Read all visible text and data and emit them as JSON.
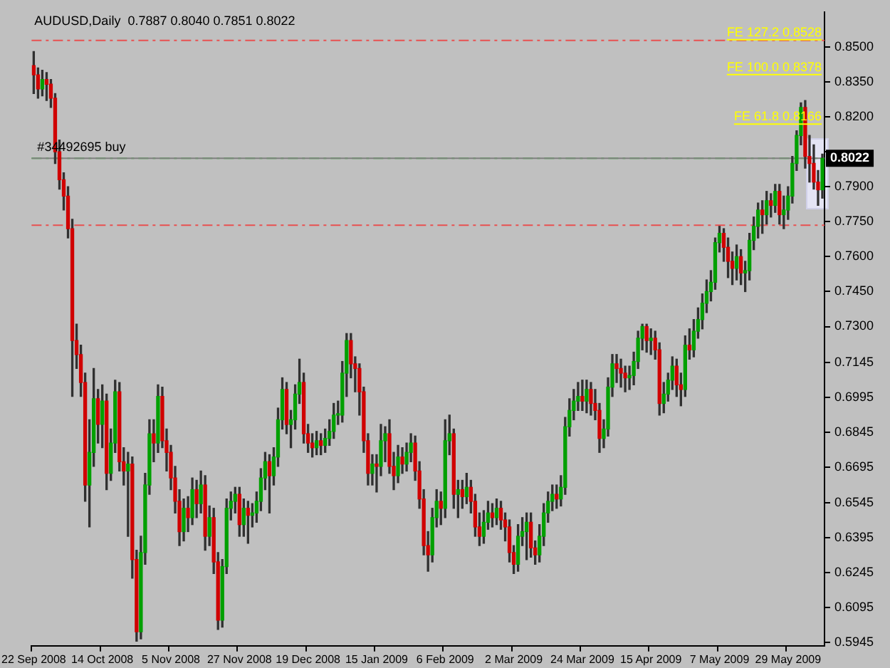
{
  "chart_data": {
    "type": "candlestick",
    "title": "AUDUSD,Daily  0.7887 0.8040 0.7851 0.8022",
    "categories": [
      "22 Sep 2008",
      null,
      null,
      null,
      null,
      null,
      null,
      null,
      null,
      null,
      null,
      null,
      null,
      null,
      null,
      null,
      "14 Oct 2008",
      null,
      null,
      null,
      null,
      null,
      null,
      null,
      null,
      null,
      null,
      null,
      null,
      null,
      null,
      null,
      "5 Nov 2008",
      null,
      null,
      null,
      null,
      null,
      null,
      null,
      null,
      null,
      null,
      null,
      null,
      null,
      null,
      null,
      "27 Nov 2008",
      null,
      null,
      null,
      null,
      null,
      null,
      null,
      null,
      null,
      null,
      null,
      null,
      null,
      null,
      null,
      "19 Dec 2008",
      null,
      null,
      null,
      null,
      null,
      null,
      null,
      null,
      null,
      null,
      null,
      null,
      null,
      null,
      null,
      "15 Jan 2009",
      null,
      null,
      null,
      null,
      null,
      null,
      null,
      null,
      null,
      null,
      null,
      null,
      null,
      null,
      null,
      "6 Feb 2009",
      null,
      null,
      null,
      null,
      null,
      null,
      null,
      null,
      null,
      null,
      null,
      null,
      null,
      null,
      null,
      "2 Mar 2009",
      null,
      null,
      null,
      null,
      null,
      null,
      null,
      null,
      null,
      null,
      null,
      null,
      null,
      null,
      null,
      "24 Mar 2009",
      null,
      null,
      null,
      null,
      null,
      null,
      null,
      null,
      null,
      null,
      null,
      null,
      null,
      null,
      null,
      "15 Apr 2009",
      null,
      null,
      null,
      null,
      null,
      null,
      null,
      null,
      null,
      null,
      null,
      null,
      null,
      null,
      null,
      "7 May 2009",
      null,
      null,
      null,
      null,
      null,
      null,
      null,
      null,
      null,
      null,
      null,
      null,
      null,
      null,
      null,
      "29 May 2009",
      null,
      null,
      null,
      null,
      null,
      null,
      null,
      null
    ],
    "ohlc": [
      [
        0.842,
        0.848,
        0.83,
        0.838
      ],
      [
        0.838,
        0.841,
        0.828,
        0.832
      ],
      [
        0.832,
        0.84,
        0.829,
        0.836
      ],
      [
        0.836,
        0.839,
        0.827,
        0.834
      ],
      [
        0.834,
        0.836,
        0.824,
        0.828
      ],
      [
        0.828,
        0.83,
        0.8,
        0.805
      ],
      [
        0.805,
        0.81,
        0.789,
        0.793
      ],
      [
        0.793,
        0.796,
        0.78,
        0.786
      ],
      [
        0.786,
        0.79,
        0.768,
        0.772
      ],
      [
        0.772,
        0.776,
        0.7,
        0.724
      ],
      [
        0.724,
        0.731,
        0.712,
        0.718
      ],
      [
        0.718,
        0.722,
        0.7,
        0.706
      ],
      [
        0.706,
        0.71,
        0.655,
        0.662
      ],
      [
        0.662,
        0.69,
        0.644,
        0.676
      ],
      [
        0.676,
        0.712,
        0.67,
        0.699
      ],
      [
        0.699,
        0.703,
        0.68,
        0.688
      ],
      [
        0.688,
        0.705,
        0.678,
        0.698
      ],
      [
        0.698,
        0.701,
        0.66,
        0.667
      ],
      [
        0.667,
        0.686,
        0.664,
        0.68
      ],
      [
        0.68,
        0.707,
        0.676,
        0.702
      ],
      [
        0.702,
        0.706,
        0.668,
        0.672
      ],
      [
        0.672,
        0.678,
        0.662,
        0.668
      ],
      [
        0.668,
        0.676,
        0.64,
        0.671
      ],
      [
        0.671,
        0.674,
        0.622,
        0.63
      ],
      [
        0.63,
        0.634,
        0.595,
        0.599
      ],
      [
        0.599,
        0.64,
        0.596,
        0.633
      ],
      [
        0.633,
        0.667,
        0.628,
        0.662
      ],
      [
        0.662,
        0.69,
        0.658,
        0.684
      ],
      [
        0.684,
        0.69,
        0.672,
        0.68
      ],
      [
        0.68,
        0.705,
        0.676,
        0.7
      ],
      [
        0.7,
        0.704,
        0.678,
        0.681
      ],
      [
        0.681,
        0.686,
        0.668,
        0.676
      ],
      [
        0.676,
        0.679,
        0.66,
        0.665
      ],
      [
        0.665,
        0.67,
        0.65,
        0.655
      ],
      [
        0.655,
        0.66,
        0.636,
        0.642
      ],
      [
        0.642,
        0.656,
        0.638,
        0.652
      ],
      [
        0.652,
        0.657,
        0.642,
        0.648
      ],
      [
        0.648,
        0.665,
        0.645,
        0.66
      ],
      [
        0.66,
        0.664,
        0.648,
        0.654
      ],
      [
        0.654,
        0.668,
        0.65,
        0.662
      ],
      [
        0.662,
        0.666,
        0.634,
        0.64
      ],
      [
        0.64,
        0.653,
        0.636,
        0.648
      ],
      [
        0.648,
        0.652,
        0.624,
        0.629
      ],
      [
        0.629,
        0.633,
        0.6,
        0.604
      ],
      [
        0.604,
        0.63,
        0.601,
        0.627
      ],
      [
        0.627,
        0.656,
        0.624,
        0.652
      ],
      [
        0.652,
        0.659,
        0.647,
        0.655
      ],
      [
        0.655,
        0.661,
        0.65,
        0.658
      ],
      [
        0.658,
        0.661,
        0.64,
        0.645
      ],
      [
        0.645,
        0.656,
        0.64,
        0.652
      ],
      [
        0.652,
        0.655,
        0.637,
        0.649
      ],
      [
        0.649,
        0.654,
        0.644,
        0.65
      ],
      [
        0.65,
        0.659,
        0.646,
        0.655
      ],
      [
        0.655,
        0.669,
        0.651,
        0.665
      ],
      [
        0.665,
        0.676,
        0.66,
        0.672
      ],
      [
        0.672,
        0.675,
        0.65,
        0.666
      ],
      [
        0.666,
        0.678,
        0.662,
        0.674
      ],
      [
        0.674,
        0.695,
        0.67,
        0.69
      ],
      [
        0.69,
        0.708,
        0.686,
        0.703
      ],
      [
        0.703,
        0.706,
        0.684,
        0.688
      ],
      [
        0.688,
        0.694,
        0.678,
        0.69
      ],
      [
        0.69,
        0.705,
        0.686,
        0.701
      ],
      [
        0.701,
        0.716,
        0.697,
        0.706
      ],
      [
        0.706,
        0.71,
        0.68,
        0.684
      ],
      [
        0.684,
        0.688,
        0.676,
        0.68
      ],
      [
        0.68,
        0.684,
        0.674,
        0.678
      ],
      [
        0.678,
        0.685,
        0.675,
        0.681
      ],
      [
        0.681,
        0.684,
        0.675,
        0.679
      ],
      [
        0.679,
        0.686,
        0.676,
        0.682
      ],
      [
        0.682,
        0.69,
        0.679,
        0.685
      ],
      [
        0.685,
        0.697,
        0.682,
        0.692
      ],
      [
        0.692,
        0.698,
        0.688,
        0.692
      ],
      [
        0.692,
        0.715,
        0.689,
        0.71
      ],
      [
        0.71,
        0.727,
        0.7,
        0.724
      ],
      [
        0.724,
        0.727,
        0.708,
        0.714
      ],
      [
        0.714,
        0.717,
        0.702,
        0.712
      ],
      [
        0.712,
        0.714,
        0.692,
        0.702
      ],
      [
        0.702,
        0.704,
        0.676,
        0.681
      ],
      [
        0.681,
        0.684,
        0.662,
        0.667
      ],
      [
        0.667,
        0.675,
        0.662,
        0.671
      ],
      [
        0.671,
        0.675,
        0.659,
        0.67
      ],
      [
        0.67,
        0.688,
        0.666,
        0.681
      ],
      [
        0.681,
        0.687,
        0.672,
        0.684
      ],
      [
        0.684,
        0.69,
        0.667,
        0.67
      ],
      [
        0.67,
        0.676,
        0.66,
        0.666
      ],
      [
        0.666,
        0.679,
        0.663,
        0.674
      ],
      [
        0.674,
        0.678,
        0.667,
        0.671
      ],
      [
        0.671,
        0.68,
        0.668,
        0.676
      ],
      [
        0.676,
        0.684,
        0.672,
        0.68
      ],
      [
        0.68,
        0.683,
        0.664,
        0.668
      ],
      [
        0.668,
        0.672,
        0.652,
        0.656
      ],
      [
        0.656,
        0.66,
        0.632,
        0.636
      ],
      [
        0.636,
        0.642,
        0.625,
        0.632
      ],
      [
        0.632,
        0.652,
        0.629,
        0.648
      ],
      [
        0.648,
        0.66,
        0.644,
        0.655
      ],
      [
        0.655,
        0.659,
        0.645,
        0.652
      ],
      [
        0.652,
        0.69,
        0.648,
        0.681
      ],
      [
        0.681,
        0.692,
        0.675,
        0.684
      ],
      [
        0.684,
        0.686,
        0.652,
        0.658
      ],
      [
        0.658,
        0.664,
        0.648,
        0.66
      ],
      [
        0.66,
        0.664,
        0.652,
        0.657
      ],
      [
        0.657,
        0.667,
        0.654,
        0.661
      ],
      [
        0.661,
        0.664,
        0.65,
        0.655
      ],
      [
        0.655,
        0.658,
        0.64,
        0.644
      ],
      [
        0.644,
        0.65,
        0.636,
        0.64
      ],
      [
        0.64,
        0.651,
        0.637,
        0.646
      ],
      [
        0.646,
        0.655,
        0.643,
        0.65
      ],
      [
        0.65,
        0.654,
        0.644,
        0.648
      ],
      [
        0.648,
        0.656,
        0.645,
        0.652
      ],
      [
        0.652,
        0.655,
        0.643,
        0.647
      ],
      [
        0.647,
        0.65,
        0.638,
        0.644
      ],
      [
        0.644,
        0.647,
        0.629,
        0.633
      ],
      [
        0.633,
        0.636,
        0.624,
        0.628
      ],
      [
        0.628,
        0.645,
        0.625,
        0.64
      ],
      [
        0.64,
        0.648,
        0.636,
        0.642
      ],
      [
        0.642,
        0.65,
        0.63,
        0.646
      ],
      [
        0.646,
        0.65,
        0.631,
        0.635
      ],
      [
        0.635,
        0.638,
        0.628,
        0.632
      ],
      [
        0.632,
        0.645,
        0.629,
        0.64
      ],
      [
        0.64,
        0.654,
        0.636,
        0.65
      ],
      [
        0.65,
        0.659,
        0.646,
        0.655
      ],
      [
        0.655,
        0.662,
        0.651,
        0.658
      ],
      [
        0.658,
        0.662,
        0.652,
        0.656
      ],
      [
        0.656,
        0.666,
        0.653,
        0.661
      ],
      [
        0.661,
        0.691,
        0.658,
        0.687
      ],
      [
        0.687,
        0.699,
        0.683,
        0.694
      ],
      [
        0.694,
        0.703,
        0.69,
        0.698
      ],
      [
        0.698,
        0.706,
        0.694,
        0.7
      ],
      [
        0.7,
        0.707,
        0.694,
        0.698
      ],
      [
        0.698,
        0.707,
        0.693,
        0.703
      ],
      [
        0.703,
        0.706,
        0.692,
        0.697
      ],
      [
        0.697,
        0.703,
        0.69,
        0.694
      ],
      [
        0.694,
        0.697,
        0.676,
        0.682
      ],
      [
        0.682,
        0.69,
        0.678,
        0.686
      ],
      [
        0.686,
        0.708,
        0.683,
        0.704
      ],
      [
        0.704,
        0.718,
        0.7,
        0.714
      ],
      [
        0.714,
        0.718,
        0.706,
        0.712
      ],
      [
        0.712,
        0.716,
        0.704,
        0.71
      ],
      [
        0.71,
        0.713,
        0.702,
        0.708
      ],
      [
        0.708,
        0.713,
        0.703,
        0.709
      ],
      [
        0.709,
        0.719,
        0.705,
        0.715
      ],
      [
        0.715,
        0.728,
        0.712,
        0.725
      ],
      [
        0.725,
        0.731,
        0.72,
        0.73
      ],
      [
        0.73,
        0.731,
        0.719,
        0.724
      ],
      [
        0.724,
        0.729,
        0.718,
        0.725
      ],
      [
        0.725,
        0.728,
        0.716,
        0.72
      ],
      [
        0.72,
        0.723,
        0.692,
        0.697
      ],
      [
        0.697,
        0.706,
        0.693,
        0.701
      ],
      [
        0.701,
        0.71,
        0.698,
        0.707
      ],
      [
        0.707,
        0.717,
        0.703,
        0.713
      ],
      [
        0.713,
        0.716,
        0.7,
        0.705
      ],
      [
        0.705,
        0.71,
        0.696,
        0.703
      ],
      [
        0.703,
        0.726,
        0.7,
        0.722
      ],
      [
        0.722,
        0.729,
        0.716,
        0.72
      ],
      [
        0.72,
        0.733,
        0.717,
        0.728
      ],
      [
        0.728,
        0.738,
        0.725,
        0.733
      ],
      [
        0.733,
        0.744,
        0.729,
        0.74
      ],
      [
        0.74,
        0.75,
        0.736,
        0.745
      ],
      [
        0.745,
        0.754,
        0.741,
        0.749
      ],
      [
        0.749,
        0.768,
        0.746,
        0.766
      ],
      [
        0.766,
        0.773,
        0.762,
        0.77
      ],
      [
        0.77,
        0.772,
        0.758,
        0.764
      ],
      [
        0.764,
        0.768,
        0.751,
        0.758
      ],
      [
        0.758,
        0.762,
        0.748,
        0.755
      ],
      [
        0.755,
        0.765,
        0.75,
        0.76
      ],
      [
        0.76,
        0.763,
        0.748,
        0.753
      ],
      [
        0.753,
        0.758,
        0.745,
        0.754
      ],
      [
        0.754,
        0.77,
        0.75,
        0.767
      ],
      [
        0.767,
        0.777,
        0.763,
        0.773
      ],
      [
        0.773,
        0.783,
        0.768,
        0.78
      ],
      [
        0.78,
        0.784,
        0.77,
        0.778
      ],
      [
        0.778,
        0.788,
        0.774,
        0.784
      ],
      [
        0.784,
        0.787,
        0.777,
        0.782
      ],
      [
        0.782,
        0.791,
        0.779,
        0.788
      ],
      [
        0.788,
        0.791,
        0.774,
        0.778
      ],
      [
        0.778,
        0.786,
        0.772,
        0.78
      ],
      [
        0.78,
        0.79,
        0.776,
        0.786
      ],
      [
        0.786,
        0.803,
        0.783,
        0.8
      ],
      [
        0.8,
        0.814,
        0.797,
        0.812
      ],
      [
        0.812,
        0.826,
        0.808,
        0.824
      ],
      [
        0.824,
        0.827,
        0.798,
        0.803
      ],
      [
        0.803,
        0.812,
        0.792,
        0.8
      ],
      [
        0.8,
        0.808,
        0.789,
        0.792
      ],
      [
        0.792,
        0.797,
        0.782,
        0.7887
      ],
      [
        0.7887,
        0.804,
        0.7851,
        0.8022
      ]
    ],
    "ylim": [
      0.593,
      0.865
    ],
    "yticks": [
      0.5945,
      0.6095,
      0.6245,
      0.6395,
      0.6545,
      0.6695,
      0.6845,
      0.6995,
      0.7145,
      {
        "value": 0.73,
        "label": "0.7300"
      },
      {
        "value": 0.745,
        "label": "0.7450"
      },
      {
        "value": 0.76,
        "label": "0.7600"
      },
      {
        "value": 0.775,
        "label": "0.7750"
      },
      {
        "value": 0.79,
        "label": "0.7900"
      },
      {
        "value": 0.805,
        "label": null
      },
      {
        "value": 0.82,
        "label": "0.8200"
      },
      {
        "value": 0.835,
        "label": "0.8350"
      },
      {
        "value": 0.85,
        "label": "0.8500"
      }
    ],
    "ref_lines": [
      {
        "axis": "y",
        "value": 0.8528,
        "color": "#e85050",
        "line_style": "dashed"
      },
      {
        "axis": "y",
        "value": 0.8528,
        "label": "FE 127.2 0.8528",
        "color": "#ffff00"
      },
      {
        "axis": "y",
        "value": 0.8378,
        "label": "FE 100.0 0.8378",
        "color": "#ffff00"
      },
      {
        "axis": "y",
        "value": 0.8166,
        "label": "FE 61.8 0.8166",
        "color": "#ffff00"
      },
      {
        "axis": "y",
        "value": 0.8022,
        "label": "#34492695 buy",
        "color": "#30d030",
        "line_style": "dashed"
      },
      {
        "axis": "y",
        "value": 0.8022,
        "label": "0.8022",
        "color": "#808080",
        "line_style": "solid"
      },
      {
        "axis": "y",
        "value": 0.7735,
        "color": "#e85050",
        "line_style": "dashed"
      }
    ],
    "grid": false,
    "legend": false
  }
}
